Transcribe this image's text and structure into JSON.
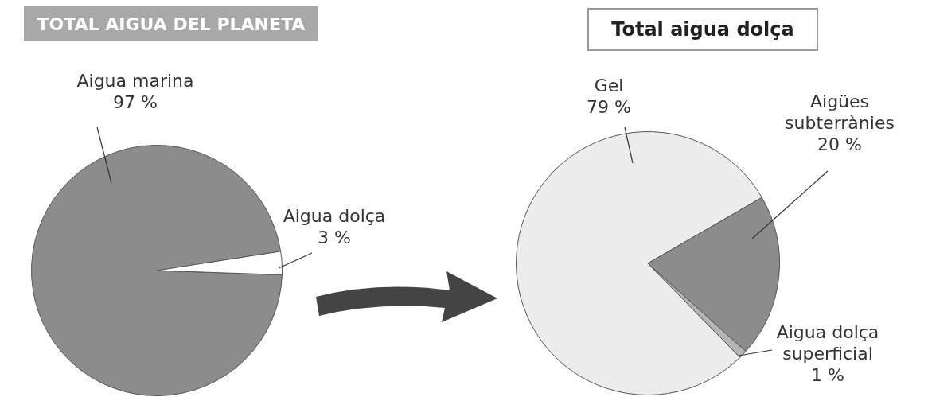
{
  "chart_data": [
    {
      "type": "pie",
      "title": "TOTAL AIGUA DEL PLANETA",
      "categories": [
        "Aigua marina",
        "Aigua dolça"
      ],
      "values": [
        97,
        3
      ],
      "colors": [
        "#8c8c8c",
        "#ffffff"
      ],
      "value_labels": [
        "97 %",
        "3 %"
      ]
    },
    {
      "type": "pie",
      "title": "Total aigua dolça",
      "categories": [
        "Gel",
        "Aigües subterrànies",
        "Aigua dolça superficial"
      ],
      "values": [
        79,
        20,
        1
      ],
      "colors": [
        "#ececec",
        "#8c8c8c",
        "#b5b5b5"
      ],
      "value_labels": [
        "79 %",
        "20 %",
        "1 %"
      ]
    }
  ]
}
